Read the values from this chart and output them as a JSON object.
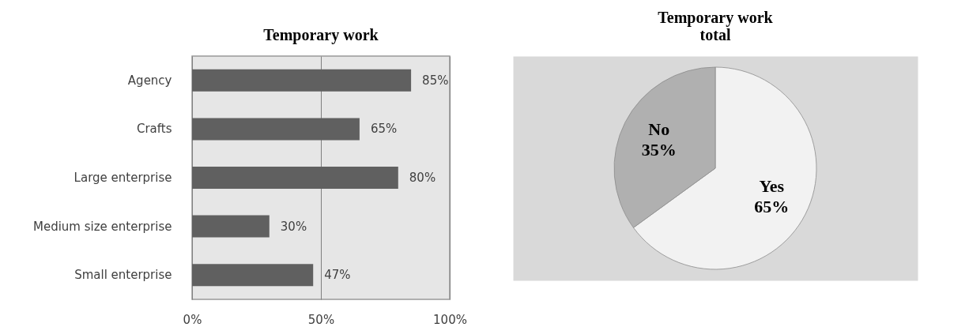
{
  "chart_data": [
    {
      "type": "bar",
      "orientation": "horizontal",
      "title": "Temporary work",
      "categories": [
        "Agency",
        "Crafts",
        "Large enterprise",
        "Medium size enterprise",
        "Small enterprise"
      ],
      "values": [
        85,
        65,
        80,
        30,
        47
      ],
      "color": "#606060",
      "value_labels": [
        "85%",
        "65%",
        "80%",
        "30%",
        "47%"
      ],
      "xlim": [
        0,
        100
      ],
      "xticks": [
        {
          "value": 0,
          "label": "0%"
        },
        {
          "value": 50,
          "label": "50%"
        },
        {
          "value": 100,
          "label": "100%"
        }
      ],
      "grid": "x"
    },
    {
      "type": "pie",
      "title": "Temporary work\ntotal",
      "categories": [
        "Yes",
        "No"
      ],
      "values": [
        65,
        35
      ],
      "colors": [
        "#f2f2f2",
        "#b0b0b0"
      ],
      "value_labels": [
        "65%",
        "35%"
      ]
    }
  ]
}
